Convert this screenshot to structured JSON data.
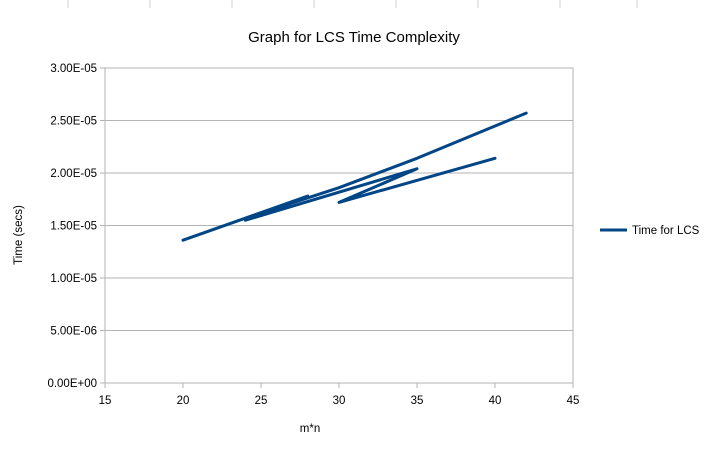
{
  "chart_data": {
    "type": "line",
    "title": "Graph for LCS Time Complexity",
    "xlabel": "m*n",
    "ylabel": "Time (secs)",
    "xlim": [
      15,
      45
    ],
    "ylim": [
      0,
      3e-05
    ],
    "x_ticks": [
      15,
      20,
      25,
      30,
      35,
      40,
      45
    ],
    "x_tick_labels": [
      "15",
      "20",
      "25",
      "30",
      "35",
      "40",
      "45"
    ],
    "y_ticks": [
      0,
      5e-06,
      1e-05,
      1.5e-05,
      2e-05,
      2.5e-05,
      3e-05
    ],
    "y_tick_labels": [
      "0.00E+00",
      "5.00E-06",
      "1.00E-05",
      "1.50E-05",
      "2.00E-05",
      "2.50E-05",
      "3.00E-05"
    ],
    "grid": true,
    "legend_position": "right",
    "series": [
      {
        "name": "Time for LCS",
        "color": "#004586",
        "points": [
          {
            "x": 20,
            "y": 1.36e-05
          },
          {
            "x": 28,
            "y": 1.78e-05
          },
          {
            "x": 24,
            "y": 1.57e-05
          },
          {
            "x": 30,
            "y": 1.86e-05
          },
          {
            "x": 35,
            "y": 2.14e-05
          },
          {
            "x": 42,
            "y": 2.57e-05
          }
        ]
      },
      {
        "name": "",
        "color": "#004586",
        "points": [
          {
            "x": 24,
            "y": 1.55e-05
          },
          {
            "x": 35,
            "y": 2.04e-05
          },
          {
            "x": 30,
            "y": 1.72e-05
          },
          {
            "x": 40,
            "y": 2.14e-05
          }
        ]
      }
    ]
  }
}
